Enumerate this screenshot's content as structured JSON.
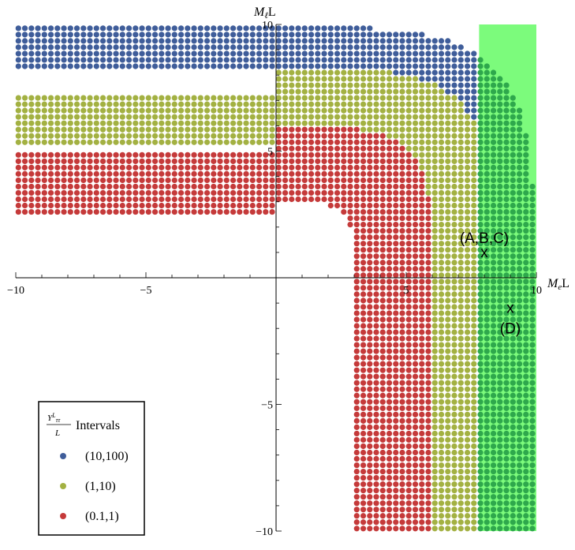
{
  "chart_data": {
    "type": "scatter",
    "xlabel_main": "M",
    "xlabel_sub": "e",
    "xlabel_suffix": "L",
    "ylabel_main": "M",
    "ylabel_sub": "ℓ",
    "ylabel_suffix": "L",
    "xlim": [
      -10,
      10
    ],
    "ylim": [
      -10,
      10
    ],
    "x_ticks": [
      -10,
      -5,
      5,
      10
    ],
    "x_tick_labels": [
      "−10",
      "−5",
      "5",
      "10"
    ],
    "y_ticks": [
      10,
      5,
      -5,
      -10
    ],
    "y_tick_labels": [
      "10",
      "5",
      "−5",
      "−10"
    ],
    "grid": false,
    "legend_position": "bottom-left",
    "legend": {
      "title_num": "Y",
      "title_num_sup": "L",
      "title_num_sub": "ττ",
      "title_den": "L",
      "title_text": "Intervals",
      "entries": [
        {
          "label": "(10,100)",
          "color": "#3f5d9a"
        },
        {
          "label": "(1,10)",
          "color": "#a3b142"
        },
        {
          "label": "(0.1,1)",
          "color": "#c53a3a"
        }
      ]
    },
    "highlight_band": {
      "x_range": [
        7.8,
        10.0
      ],
      "y_range": [
        -10,
        10
      ],
      "color": "#7cfb7c"
    },
    "band_point_color": "#2ea84c",
    "points": [
      {
        "label": "(A,B,C)",
        "x": 8.0,
        "y": 1.0
      },
      {
        "label": "(D)",
        "x": 9.0,
        "y": -1.2
      }
    ],
    "regions": [
      {
        "name": "(10,100)",
        "r_inner": 8.3,
        "r_outer": 9.9,
        "y_max": 9.9,
        "n_exp": 4
      },
      {
        "name": "(1,10)",
        "r_inner": 6.0,
        "r_outer": 8.3,
        "y_max": 7.2,
        "n_exp": 4
      },
      {
        "name": "(0.1,1)",
        "r_inner": 3.0,
        "r_outer": 6.0,
        "y_max": 4.9,
        "n_exp": 4
      }
    ],
    "grid_step": 0.25
  }
}
